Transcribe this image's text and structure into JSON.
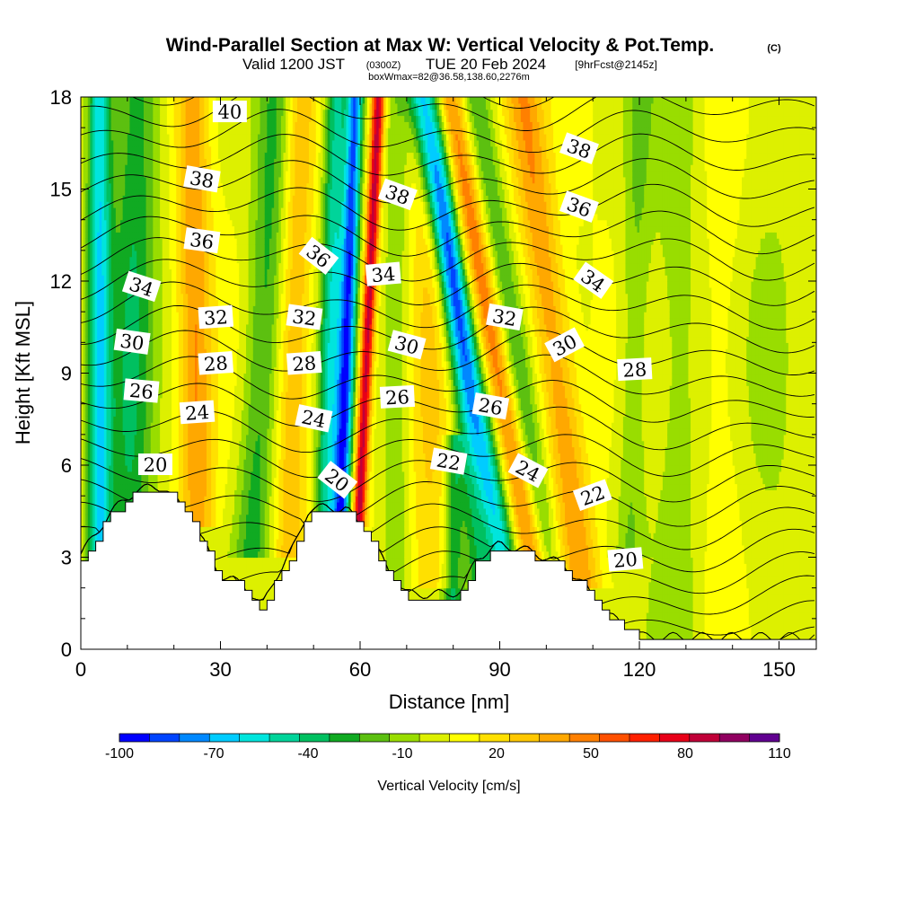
{
  "chart_data": {
    "type": "heatmap",
    "title": "Wind-Parallel Section at Max W: Vertical Velocity & Pot.Temp.",
    "title_mark": "(C)",
    "subtitle": {
      "valid": "Valid 1200 JST",
      "utc": "(0300Z)",
      "date": "TUE 20 Feb 2024",
      "forecast": "[9hrFcst@2145z]"
    },
    "box_info": "boxWmax=82@36.58,138.60,2276m",
    "xlabel": "Distance [nm]",
    "ylabel": "Height [Kft MSL]",
    "xlim": [
      0,
      158
    ],
    "ylim": [
      0,
      18
    ],
    "x_ticks": [
      "0",
      "30",
      "60",
      "90",
      "120",
      "150"
    ],
    "x_tick_values": [
      0,
      30,
      60,
      90,
      120,
      150
    ],
    "y_ticks": [
      "0",
      "3",
      "6",
      "9",
      "12",
      "15",
      "18"
    ],
    "y_tick_values": [
      0,
      3,
      6,
      9,
      12,
      15,
      18
    ],
    "colorbar": {
      "label": "Vertical Velocity [cm/s]",
      "min": -100,
      "max": 110,
      "step": 10,
      "tick_labels": [
        "-100",
        "-70",
        "-40",
        "-10",
        "20",
        "50",
        "80",
        "110"
      ],
      "tick_values": [
        -100,
        -70,
        -40,
        -10,
        20,
        50,
        80,
        110
      ],
      "colors": [
        "#0000ff",
        "#0044ff",
        "#0088ff",
        "#00ccff",
        "#00e5dd",
        "#00d49a",
        "#00c060",
        "#10aa22",
        "#5cc010",
        "#99dd00",
        "#ddf000",
        "#ffff00",
        "#ffe000",
        "#ffc800",
        "#ffa800",
        "#ff8000",
        "#ff5000",
        "#ff2000",
        "#e80018",
        "#c00038",
        "#900060",
        "#600090"
      ]
    },
    "w_features": [
      {
        "x": 56,
        "z_bottom": 4.5,
        "z_top": 18,
        "tilt": 3,
        "width": 1.8,
        "value": -95
      },
      {
        "x": 60,
        "z_bottom": 5,
        "z_top": 18,
        "tilt": 4,
        "width": 1.4,
        "value": 90
      },
      {
        "x": 53,
        "z_bottom": 4.5,
        "z_top": 18,
        "tilt": 2,
        "width": 2.5,
        "value": -60
      },
      {
        "x": 4,
        "z_bottom": 2,
        "z_top": 18,
        "tilt": 0,
        "width": 2.5,
        "value": -70
      },
      {
        "x": 10,
        "z_bottom": 2,
        "z_top": 18,
        "tilt": 2,
        "width": 5,
        "value": -40
      },
      {
        "x": 25,
        "z_bottom": 5,
        "z_top": 18,
        "tilt": -1,
        "width": 3.5,
        "value": 40
      },
      {
        "x": 37,
        "z_bottom": 4,
        "z_top": 18,
        "tilt": 5,
        "width": 4,
        "value": -35
      },
      {
        "x": 45,
        "z_bottom": 4,
        "z_top": 18,
        "tilt": 2,
        "width": 3.5,
        "value": 30
      },
      {
        "x": 92,
        "z_bottom": 2,
        "z_top": 18,
        "tilt": -19,
        "width": 3,
        "value": -70
      },
      {
        "x": 97,
        "z_bottom": 3,
        "z_top": 18,
        "tilt": -18,
        "width": 3,
        "value": 50
      },
      {
        "x": 86,
        "z_bottom": 2,
        "z_top": 18,
        "tilt": -10,
        "width": 3,
        "value": -40
      },
      {
        "x": 100,
        "z_bottom": 3,
        "z_top": 18,
        "tilt": -15,
        "width": 3,
        "value": -30
      },
      {
        "x": 107,
        "z_bottom": 3,
        "z_top": 18,
        "tilt": -12,
        "width": 4,
        "value": 40
      },
      {
        "x": 80,
        "z_bottom": 1.5,
        "z_top": 6,
        "tilt": 0,
        "width": 2,
        "value": -40
      },
      {
        "x": 68,
        "z_bottom": 3,
        "z_top": 18,
        "tilt": 0,
        "width": 3,
        "value": -20
      },
      {
        "x": 75,
        "z_bottom": 3,
        "z_top": 18,
        "tilt": 0,
        "width": 5,
        "value": 20
      },
      {
        "x": 118,
        "z_bottom": 4,
        "z_top": 18,
        "tilt": 2,
        "width": 3,
        "value": -20
      },
      {
        "x": 128,
        "z_bottom": 0,
        "z_top": 18,
        "tilt": 0,
        "width": 6,
        "value": -15
      },
      {
        "x": 148,
        "z_bottom": 0,
        "z_top": 18,
        "tilt": 0,
        "width": 10,
        "value": -10
      },
      {
        "x": 138,
        "z_bottom": 0,
        "z_top": 18,
        "tilt": 0,
        "width": 5,
        "value": 10
      }
    ],
    "terrain_height_kft": [
      [
        0,
        3.0
      ],
      [
        3,
        3.6
      ],
      [
        6,
        4.3
      ],
      [
        9,
        4.7
      ],
      [
        12,
        5.1
      ],
      [
        18,
        5.2
      ],
      [
        20,
        4.8
      ],
      [
        23,
        4.3
      ],
      [
        27,
        3.2
      ],
      [
        30,
        2.3
      ],
      [
        35,
        2.0
      ],
      [
        39,
        1.3
      ],
      [
        42,
        2.3
      ],
      [
        46,
        3.3
      ],
      [
        49,
        4.5
      ],
      [
        57,
        4.5
      ],
      [
        60,
        3.9
      ],
      [
        63,
        3.3
      ],
      [
        66,
        2.5
      ],
      [
        70,
        1.7
      ],
      [
        78,
        1.7
      ],
      [
        82,
        1.8
      ],
      [
        85,
        2.9
      ],
      [
        90,
        3.3
      ],
      [
        94,
        3.2
      ],
      [
        100,
        2.9
      ],
      [
        104,
        2.6
      ],
      [
        108,
        2.0
      ],
      [
        112,
        1.2
      ],
      [
        117,
        0.6
      ],
      [
        121,
        0.3
      ],
      [
        158,
        0.3
      ]
    ],
    "theta_contours_c": [
      18,
      19,
      20,
      21,
      22,
      23,
      24,
      25,
      26,
      27,
      28,
      29,
      30,
      31,
      32,
      33,
      34,
      35,
      36,
      37,
      38,
      39,
      40,
      41,
      42
    ],
    "theta_labels": [
      {
        "text": "40",
        "x": 32,
        "z": 17.5,
        "angle": 0
      },
      {
        "text": "38",
        "x": 26,
        "z": 15.3,
        "angle": 10
      },
      {
        "text": "36",
        "x": 26,
        "z": 13.3,
        "angle": 8
      },
      {
        "text": "34",
        "x": 13,
        "z": 11.8,
        "angle": 18
      },
      {
        "text": "32",
        "x": 29,
        "z": 10.8,
        "angle": -4
      },
      {
        "text": "30",
        "x": 11,
        "z": 10.0,
        "angle": 8
      },
      {
        "text": "28",
        "x": 29,
        "z": 9.3,
        "angle": -4
      },
      {
        "text": "26",
        "x": 13,
        "z": 8.4,
        "angle": 5
      },
      {
        "text": "24",
        "x": 25,
        "z": 7.7,
        "angle": -4
      },
      {
        "text": "20",
        "x": 16,
        "z": 6.0,
        "angle": 0
      },
      {
        "text": "32",
        "x": 48,
        "z": 10.8,
        "angle": 8
      },
      {
        "text": "28",
        "x": 48,
        "z": 9.3,
        "angle": -4
      },
      {
        "text": "24",
        "x": 50,
        "z": 7.5,
        "angle": 12
      },
      {
        "text": "20",
        "x": 55,
        "z": 5.5,
        "angle": 38
      },
      {
        "text": "36",
        "x": 51,
        "z": 12.8,
        "angle": 38
      },
      {
        "text": "34",
        "x": 65,
        "z": 12.2,
        "angle": -5
      },
      {
        "text": "38",
        "x": 68,
        "z": 14.8,
        "angle": 20
      },
      {
        "text": "30",
        "x": 70,
        "z": 9.9,
        "angle": 15
      },
      {
        "text": "26",
        "x": 68,
        "z": 8.2,
        "angle": -3
      },
      {
        "text": "22",
        "x": 79,
        "z": 6.1,
        "angle": 10
      },
      {
        "text": "32",
        "x": 91,
        "z": 10.8,
        "angle": 10
      },
      {
        "text": "26",
        "x": 88,
        "z": 7.9,
        "angle": 10
      },
      {
        "text": "24",
        "x": 96,
        "z": 5.8,
        "angle": 28
      },
      {
        "text": "30",
        "x": 104,
        "z": 9.9,
        "angle": -28
      },
      {
        "text": "28",
        "x": 119,
        "z": 9.1,
        "angle": -3
      },
      {
        "text": "22",
        "x": 110,
        "z": 5.0,
        "angle": -20
      },
      {
        "text": "20",
        "x": 117,
        "z": 2.9,
        "angle": -5
      },
      {
        "text": "38",
        "x": 107,
        "z": 16.3,
        "angle": 20
      },
      {
        "text": "36",
        "x": 107,
        "z": 14.4,
        "angle": 20
      },
      {
        "text": "34",
        "x": 110,
        "z": 12.0,
        "angle": 35
      }
    ]
  }
}
